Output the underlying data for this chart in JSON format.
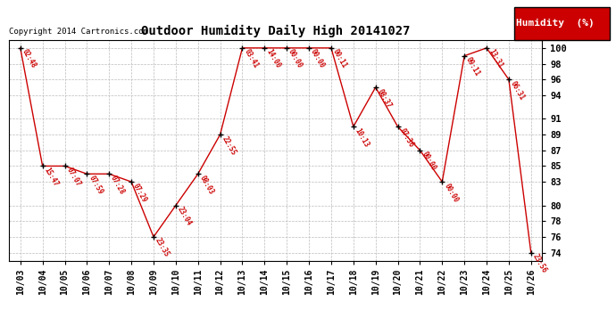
{
  "title": "Outdoor Humidity Daily High 20141027",
  "copyright": "Copyright 2014 Cartronics.com",
  "legend_label": "Humidity  (%)",
  "dates": [
    "10/03",
    "10/04",
    "10/05",
    "10/06",
    "10/07",
    "10/08",
    "10/09",
    "10/10",
    "10/11",
    "10/12",
    "10/13",
    "10/14",
    "10/15",
    "10/16",
    "10/17",
    "10/18",
    "10/19",
    "10/20",
    "10/21",
    "10/22",
    "10/23",
    "10/24",
    "10/25",
    "10/26"
  ],
  "values": [
    100,
    85,
    85,
    84,
    84,
    83,
    76,
    80,
    84,
    89,
    100,
    100,
    100,
    100,
    100,
    90,
    95,
    90,
    87,
    83,
    99,
    100,
    96,
    74
  ],
  "time_labels": [
    "02:48",
    "15:47",
    "07:07",
    "07:59",
    "07:28",
    "07:29",
    "23:35",
    "23:04",
    "08:03",
    "22:55",
    "03:41",
    "14:00",
    "00:00",
    "00:00",
    "00:11",
    "10:13",
    "08:37",
    "07:36",
    "00:00",
    "00:00",
    "09:11",
    "13:31",
    "06:31",
    "23:56"
  ],
  "line_color": "#cc0000",
  "marker_color": "#000000",
  "bg_color": "#ffffff",
  "grid_color": "#bbbbbb",
  "label_color": "#cc0000",
  "title_color": "#000000",
  "ylim_min": 73,
  "ylim_max": 101,
  "yticks": [
    74,
    76,
    78,
    80,
    83,
    85,
    87,
    89,
    91,
    94,
    96,
    98,
    100
  ],
  "legend_bg": "#cc0000",
  "legend_text_color": "#ffffff",
  "fig_width": 6.9,
  "fig_height": 3.75,
  "dpi": 100
}
